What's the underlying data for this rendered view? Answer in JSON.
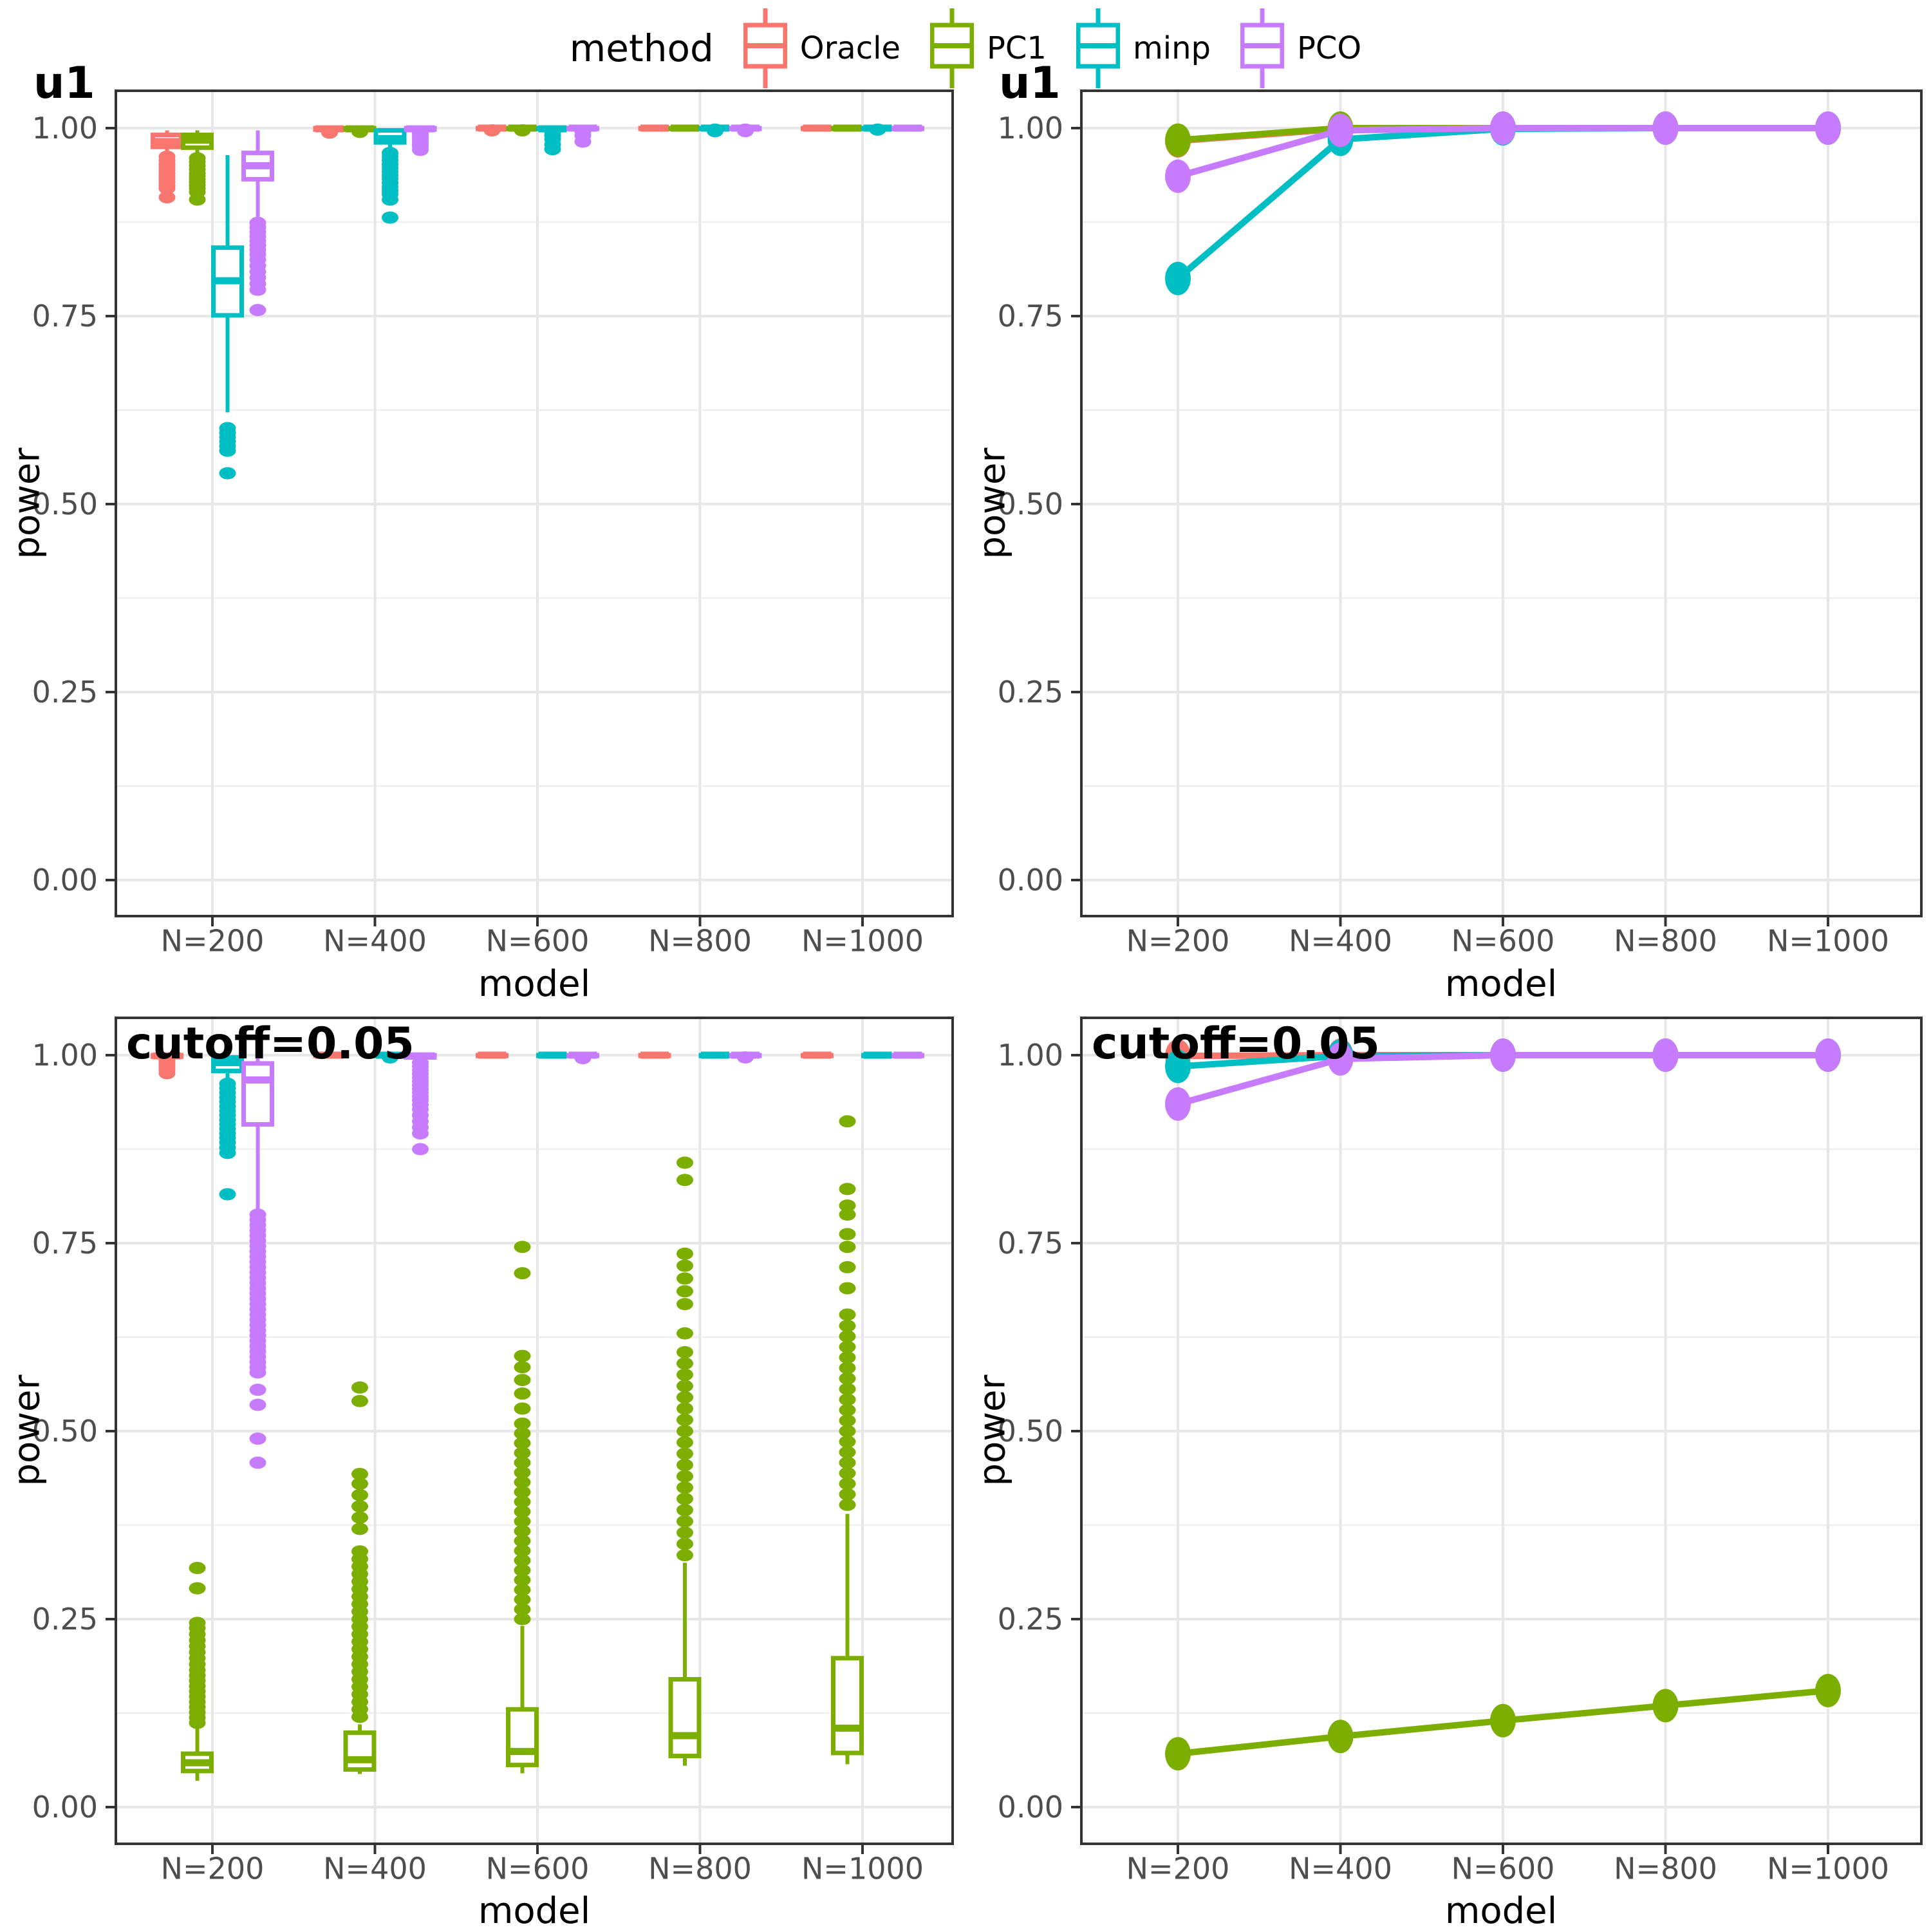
{
  "legend": {
    "title": "method",
    "items": [
      {
        "label": "Oracle",
        "color": "#F8766D"
      },
      {
        "label": "PC1",
        "color": "#7CAE00"
      },
      {
        "label": "minp",
        "color": "#00BFC4"
      },
      {
        "label": "PCO",
        "color": "#C77CFF"
      }
    ]
  },
  "style_colors": {
    "grid_major": "#E7E7E7",
    "grid_minor": "#EFEFEF",
    "panel_border": "#333333",
    "tick_text": "#4D4D4D",
    "tick_mark": "#333333"
  },
  "chart_data": [
    {
      "id": "u1-boxplot",
      "type": "boxplot",
      "title": "u1",
      "xlabel": "model",
      "ylabel": "power",
      "categories": [
        "N=200",
        "N=400",
        "N=600",
        "N=800",
        "N=1000"
      ],
      "ytick_labels": [
        "0.00",
        "0.25",
        "0.50",
        "0.75",
        "1.00"
      ],
      "ylim": [
        0,
        1
      ],
      "grid": "on",
      "series": [
        {
          "name": "Oracle",
          "color": "#F8766D",
          "boxes": [
            {
              "lo": 0.965,
              "q1": 0.975,
              "med": 0.982,
              "q3": 0.991,
              "hi": 0.997,
              "out": [
                0.962,
                0.957,
                0.952,
                0.948,
                0.944,
                0.94,
                0.936,
                0.932,
                0.928,
                0.924,
                0.92,
                0.908
              ]
            },
            {
              "lo": 0.996,
              "q1": 0.998,
              "med": 0.999,
              "q3": 1,
              "hi": 1,
              "out": [
                0.994
              ]
            },
            {
              "lo": 0.998,
              "q1": 0.999,
              "med": 1,
              "q3": 1,
              "hi": 1,
              "out": [
                0.997
              ]
            },
            {
              "lo": 0.999,
              "q1": 0.999,
              "med": 1,
              "q3": 1,
              "hi": 1,
              "out": []
            },
            {
              "lo": 0.999,
              "q1": 0.999,
              "med": 1,
              "q3": 1,
              "hi": 1,
              "out": []
            }
          ]
        },
        {
          "name": "PC1",
          "color": "#7CAE00",
          "boxes": [
            {
              "lo": 0.964,
              "q1": 0.974,
              "med": 0.984,
              "q3": 0.991,
              "hi": 0.997,
              "out": [
                0.96,
                0.955,
                0.95,
                0.945,
                0.94,
                0.936,
                0.932,
                0.928,
                0.924,
                0.92,
                0.915,
                0.905
              ]
            },
            {
              "lo": 0.997,
              "q1": 0.998,
              "med": 0.999,
              "q3": 1,
              "hi": 1,
              "out": [
                0.995
              ]
            },
            {
              "lo": 0.998,
              "q1": 0.999,
              "med": 1,
              "q3": 1,
              "hi": 1,
              "out": [
                0.997
              ]
            },
            {
              "lo": 0.999,
              "q1": 0.999,
              "med": 1,
              "q3": 1,
              "hi": 1,
              "out": []
            },
            {
              "lo": 0.999,
              "q1": 0.999,
              "med": 1,
              "q3": 1,
              "hi": 1,
              "out": []
            }
          ]
        },
        {
          "name": "minp",
          "color": "#00BFC4",
          "boxes": [
            {
              "lo": 0.622,
              "q1": 0.751,
              "med": 0.797,
              "q3": 0.841,
              "hi": 0.964,
              "out": [
                0.601,
                0.595,
                0.589,
                0.583,
                0.577,
                0.571,
                0.541
              ]
            },
            {
              "lo": 0.971,
              "q1": 0.981,
              "med": 0.986,
              "q3": 0.997,
              "hi": 1,
              "out": [
                0.967,
                0.962,
                0.957,
                0.952,
                0.947,
                0.942,
                0.937,
                0.932,
                0.927,
                0.922,
                0.917,
                0.912,
                0.905,
                0.881
              ]
            },
            {
              "lo": 0.997,
              "q1": 0.999,
              "med": 0.999,
              "q3": 1,
              "hi": 1,
              "out": [
                0.995,
                0.99,
                0.985,
                0.978,
                0.972
              ]
            },
            {
              "lo": 0.998,
              "q1": 0.999,
              "med": 1,
              "q3": 1,
              "hi": 1,
              "out": [
                0.998,
                0.996
              ]
            },
            {
              "lo": 0.999,
              "q1": 0.999,
              "med": 1,
              "q3": 1,
              "hi": 1,
              "out": [
                0.998
              ]
            }
          ]
        },
        {
          "name": "PCO",
          "color": "#C77CFF",
          "boxes": [
            {
              "lo": 0.882,
              "q1": 0.932,
              "med": 0.95,
              "q3": 0.967,
              "hi": 0.997,
              "out": [
                0.874,
                0.868,
                0.862,
                0.856,
                0.85,
                0.844,
                0.838,
                0.832,
                0.825,
                0.817,
                0.809,
                0.801,
                0.793,
                0.785,
                0.758
              ]
            },
            {
              "lo": 0.996,
              "q1": 0.998,
              "med": 0.999,
              "q3": 1,
              "hi": 1,
              "out": [
                0.993,
                0.99,
                0.987,
                0.984,
                0.981,
                0.978,
                0.975,
                0.971
              ]
            },
            {
              "lo": 0.998,
              "q1": 0.999,
              "med": 1,
              "q3": 1,
              "hi": 1,
              "out": [
                0.995,
                0.99,
                0.982
              ]
            },
            {
              "lo": 0.998,
              "q1": 0.999,
              "med": 1,
              "q3": 1,
              "hi": 1,
              "out": [
                0.998,
                0.996
              ]
            },
            {
              "lo": 0.999,
              "q1": 0.999,
              "med": 1,
              "q3": 1,
              "hi": 1,
              "out": []
            }
          ]
        }
      ]
    },
    {
      "id": "u1-lines",
      "type": "line",
      "title": "u1",
      "xlabel": "model",
      "ylabel": "power",
      "categories": [
        "N=200",
        "N=400",
        "N=600",
        "N=800",
        "N=1000"
      ],
      "ytick_labels": [
        "0.00",
        "0.25",
        "0.50",
        "0.75",
        "1.00"
      ],
      "ylim": [
        0,
        1
      ],
      "grid": "on",
      "series": [
        {
          "name": "Oracle",
          "color": "#F8766D",
          "values": [
            0.983,
            0.999,
            1,
            1,
            1
          ]
        },
        {
          "name": "PC1",
          "color": "#7CAE00",
          "values": [
            0.984,
            1,
            1,
            1,
            1
          ]
        },
        {
          "name": "minp",
          "color": "#00BFC4",
          "values": [
            0.8,
            0.985,
            0.999,
            1,
            1
          ]
        },
        {
          "name": "PCO",
          "color": "#C77CFF",
          "values": [
            0.936,
            0.997,
            1,
            1,
            1
          ]
        }
      ]
    },
    {
      "id": "cutoff-boxplot",
      "type": "boxplot",
      "title": "cutoff=0.05",
      "xlabel": "model",
      "ylabel": "power",
      "categories": [
        "N=200",
        "N=400",
        "N=600",
        "N=800",
        "N=1000"
      ],
      "ytick_labels": [
        "0.00",
        "0.25",
        "0.50",
        "0.75",
        "1.00"
      ],
      "ylim": [
        0,
        1
      ],
      "grid": "on",
      "series": [
        {
          "name": "Oracle",
          "color": "#F8766D",
          "boxes": [
            {
              "lo": 0.996,
              "q1": 0.998,
              "med": 0.999,
              "q3": 1,
              "hi": 1,
              "out": [
                0.993,
                0.99,
                0.987,
                0.984,
                0.98,
                0.976
              ]
            },
            {
              "lo": 0.999,
              "q1": 0.999,
              "med": 1,
              "q3": 1,
              "hi": 1,
              "out": []
            },
            {
              "lo": 0.999,
              "q1": 0.999,
              "med": 1,
              "q3": 1,
              "hi": 1,
              "out": []
            },
            {
              "lo": 0.999,
              "q1": 0.999,
              "med": 1,
              "q3": 1,
              "hi": 1,
              "out": []
            },
            {
              "lo": 0.999,
              "q1": 0.999,
              "med": 1,
              "q3": 1,
              "hi": 1,
              "out": []
            }
          ]
        },
        {
          "name": "PC1",
          "color": "#7CAE00",
          "boxes": [
            {
              "lo": 0.035,
              "q1": 0.048,
              "med": 0.059,
              "q3": 0.071,
              "hi": 0.105,
              "out": [
                0.112,
                0.119,
                0.126,
                0.133,
                0.14,
                0.147,
                0.154,
                0.161,
                0.168,
                0.175,
                0.182,
                0.19,
                0.198,
                0.206,
                0.214,
                0.222,
                0.23,
                0.238,
                0.245,
                0.291,
                0.318
              ]
            },
            {
              "lo": 0.044,
              "q1": 0.05,
              "med": 0.063,
              "q3": 0.099,
              "hi": 0.11,
              "out": [
                0.12,
                0.13,
                0.14,
                0.15,
                0.16,
                0.17,
                0.18,
                0.19,
                0.2,
                0.21,
                0.22,
                0.23,
                0.24,
                0.25,
                0.26,
                0.27,
                0.28,
                0.29,
                0.3,
                0.31,
                0.32,
                0.33,
                0.34,
                0.37,
                0.385,
                0.4,
                0.415,
                0.43,
                0.443,
                0.54,
                0.558
              ]
            },
            {
              "lo": 0.045,
              "q1": 0.056,
              "med": 0.074,
              "q3": 0.13,
              "hi": 0.241,
              "out": [
                0.25,
                0.263,
                0.276,
                0.289,
                0.302,
                0.315,
                0.328,
                0.341,
                0.354,
                0.367,
                0.38,
                0.393,
                0.406,
                0.419,
                0.432,
                0.445,
                0.458,
                0.471,
                0.484,
                0.497,
                0.51,
                0.53,
                0.55,
                0.568,
                0.585,
                0.6,
                0.71,
                0.745
              ]
            },
            {
              "lo": 0.055,
              "q1": 0.068,
              "med": 0.095,
              "q3": 0.17,
              "hi": 0.325,
              "out": [
                0.335,
                0.35,
                0.365,
                0.38,
                0.395,
                0.41,
                0.425,
                0.44,
                0.455,
                0.47,
                0.485,
                0.5,
                0.515,
                0.53,
                0.545,
                0.56,
                0.575,
                0.59,
                0.605,
                0.63,
                0.669,
                0.686,
                0.703,
                0.72,
                0.736,
                0.834,
                0.857
              ]
            },
            {
              "lo": 0.057,
              "q1": 0.072,
              "med": 0.105,
              "q3": 0.198,
              "hi": 0.39,
              "out": [
                0.402,
                0.416,
                0.43,
                0.444,
                0.458,
                0.472,
                0.486,
                0.5,
                0.514,
                0.528,
                0.542,
                0.556,
                0.57,
                0.584,
                0.598,
                0.612,
                0.626,
                0.64,
                0.655,
                0.69,
                0.718,
                0.745,
                0.762,
                0.788,
                0.8,
                0.822,
                0.912
              ]
            }
          ]
        },
        {
          "name": "minp",
          "color": "#00BFC4",
          "boxes": [
            {
              "lo": 0.967,
              "q1": 0.979,
              "med": 0.99,
              "q3": 0.997,
              "hi": 1,
              "out": [
                0.962,
                0.956,
                0.95,
                0.944,
                0.938,
                0.932,
                0.926,
                0.92,
                0.914,
                0.908,
                0.902,
                0.896,
                0.89,
                0.884,
                0.877,
                0.87,
                0.815
              ]
            },
            {
              "lo": 0.998,
              "q1": 0.999,
              "med": 1,
              "q3": 1,
              "hi": 1,
              "out": [
                0.997
              ]
            },
            {
              "lo": 0.999,
              "q1": 0.999,
              "med": 1,
              "q3": 1,
              "hi": 1,
              "out": []
            },
            {
              "lo": 0.999,
              "q1": 0.999,
              "med": 1,
              "q3": 1,
              "hi": 1,
              "out": []
            },
            {
              "lo": 0.999,
              "q1": 0.999,
              "med": 1,
              "q3": 1,
              "hi": 1,
              "out": []
            }
          ]
        },
        {
          "name": "PCO",
          "color": "#C77CFF",
          "boxes": [
            {
              "lo": 0.794,
              "q1": 0.908,
              "med": 0.967,
              "q3": 0.989,
              "hi": 0.999,
              "out": [
                0.788,
                0.781,
                0.774,
                0.767,
                0.76,
                0.753,
                0.746,
                0.739,
                0.732,
                0.725,
                0.718,
                0.711,
                0.704,
                0.697,
                0.69,
                0.683,
                0.676,
                0.669,
                0.662,
                0.655,
                0.648,
                0.641,
                0.634,
                0.627,
                0.62,
                0.613,
                0.606,
                0.599,
                0.592,
                0.585,
                0.578,
                0.555,
                0.535,
                0.49,
                0.458
              ]
            },
            {
              "lo": 0.993,
              "q1": 0.997,
              "med": 0.999,
              "q3": 1,
              "hi": 1,
              "out": [
                0.99,
                0.985,
                0.98,
                0.975,
                0.97,
                0.965,
                0.96,
                0.955,
                0.95,
                0.945,
                0.94,
                0.934,
                0.928,
                0.92,
                0.912,
                0.904,
                0.896,
                0.875
              ]
            },
            {
              "lo": 0.997,
              "q1": 0.999,
              "med": 1,
              "q3": 1,
              "hi": 1,
              "out": [
                0.996
              ]
            },
            {
              "lo": 0.998,
              "q1": 0.999,
              "med": 1,
              "q3": 1,
              "hi": 1,
              "out": [
                0.997
              ]
            },
            {
              "lo": 0.999,
              "q1": 0.999,
              "med": 1,
              "q3": 1,
              "hi": 1,
              "out": []
            }
          ]
        }
      ]
    },
    {
      "id": "cutoff-lines",
      "type": "line",
      "title": "cutoff=0.05",
      "xlabel": "model",
      "ylabel": "power",
      "categories": [
        "N=200",
        "N=400",
        "N=600",
        "N=800",
        "N=1000"
      ],
      "ytick_labels": [
        "0.00",
        "0.25",
        "0.50",
        "0.75",
        "1.00"
      ],
      "ylim": [
        0,
        1
      ],
      "grid": "on",
      "series": [
        {
          "name": "Oracle",
          "color": "#F8766D",
          "values": [
            0.999,
            1,
            1,
            1,
            1
          ]
        },
        {
          "name": "PC1",
          "color": "#7CAE00",
          "values": [
            0.071,
            0.094,
            0.115,
            0.135,
            0.155
          ]
        },
        {
          "name": "minp",
          "color": "#00BFC4",
          "values": [
            0.985,
            0.999,
            1,
            1,
            1
          ]
        },
        {
          "name": "PCO",
          "color": "#C77CFF",
          "values": [
            0.935,
            0.995,
            1,
            1,
            1
          ]
        }
      ]
    }
  ]
}
